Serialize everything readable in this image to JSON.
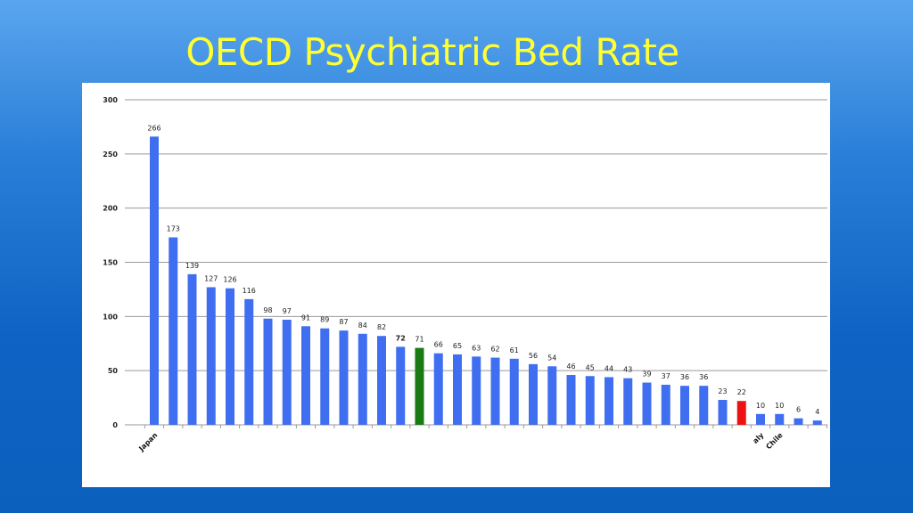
{
  "title": "OECD Psychiatric Bed Rate",
  "colors": {
    "bar": "#3f6ef0",
    "highlight_green": "#1a7a14",
    "highlight_red": "#ee1111",
    "title": "#ffff33"
  },
  "chart_data": {
    "type": "bar",
    "title": "OECD Psychiatric Bed Rate",
    "xlabel": "",
    "ylabel": "",
    "ylim": [
      0,
      300
    ],
    "yticks": [
      0,
      50,
      100,
      150,
      200,
      250,
      300
    ],
    "grid": true,
    "values": [
      266,
      173,
      139,
      127,
      126,
      116,
      98,
      97,
      91,
      89,
      87,
      84,
      82,
      72,
      71,
      66,
      65,
      63,
      62,
      61,
      56,
      54,
      46,
      45,
      44,
      43,
      39,
      37,
      36,
      36,
      23,
      22,
      10,
      10,
      6,
      4
    ],
    "data_labels": [
      "266",
      "173",
      "139",
      "127",
      "126",
      "116",
      "98",
      "97",
      "91",
      "89",
      "87",
      "84",
      "82",
      "72",
      "71",
      "66",
      "65",
      "63",
      "62",
      "61",
      "56",
      "54",
      "46",
      "45",
      "44",
      "43",
      "39",
      "37",
      "36",
      "36",
      "23",
      "22",
      "10",
      "10",
      "6",
      "4"
    ],
    "bold_labels": [
      13
    ],
    "bar_colors": {
      "14": "green",
      "31": "red"
    },
    "category_labels": [
      {
        "index": 0,
        "text": "Japan"
      },
      {
        "index": 32,
        "text": "aly"
      },
      {
        "index": 33,
        "text": "Chile"
      }
    ]
  }
}
